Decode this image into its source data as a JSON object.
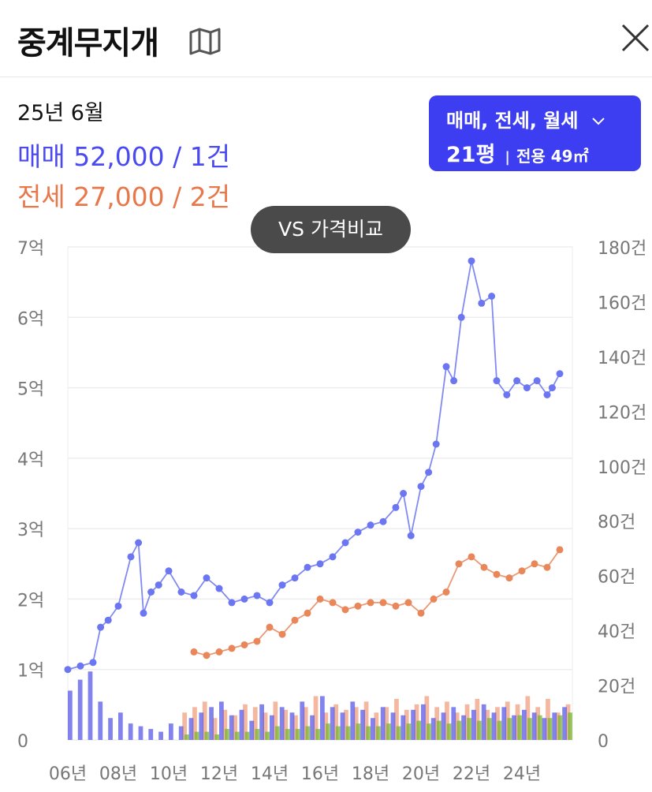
{
  "header": {
    "title": "중계무지개",
    "map_icon": "map-icon",
    "close_icon": "close-icon"
  },
  "summary": {
    "period": "25년 6월",
    "sale": "매매 52,000 / 1건",
    "rent": "전세 27,000 / 2건"
  },
  "filter": {
    "types": "매매, 전세, 월세",
    "size": "21평",
    "area": "전용 49㎡"
  },
  "compare_button": "VS 가격비교",
  "colors": {
    "sale": "#6b76f0",
    "rent": "#e8875a",
    "button": "#3d3df2",
    "vol_sale": "#5a5ae8",
    "vol_rent": "#f0a080",
    "vol_monthly": "#7ab531"
  },
  "chart_data": {
    "type": "line",
    "x_ticks": [
      "06년",
      "08년",
      "10년",
      "12년",
      "14년",
      "16년",
      "18년",
      "20년",
      "22년",
      "24년"
    ],
    "y_left_ticks": [
      "0",
      "1억",
      "2억",
      "3억",
      "4억",
      "5억",
      "6억",
      "7억"
    ],
    "y_right_ticks": [
      "0",
      "20건",
      "40건",
      "60건",
      "80건",
      "100건",
      "120건",
      "140건",
      "160건",
      "180건"
    ],
    "ylim_left": [
      0,
      7
    ],
    "ylim_right": [
      0,
      180
    ],
    "xlim": [
      2006.0,
      2026.0
    ],
    "grid": true,
    "series": [
      {
        "key": "sale",
        "x": [
          2006.0,
          2006.5,
          2007.0,
          2007.3,
          2007.6,
          2008.0,
          2008.5,
          2008.8,
          2009.0,
          2009.3,
          2009.6,
          2010.0,
          2010.5,
          2011.0,
          2011.5,
          2012.0,
          2012.5,
          2013.0,
          2013.5,
          2014.0,
          2014.5,
          2015.0,
          2015.5,
          2016.0,
          2016.5,
          2017.0,
          2017.5,
          2018.0,
          2018.5,
          2019.0,
          2019.3,
          2019.6,
          2020.0,
          2020.3,
          2020.6,
          2021.0,
          2021.3,
          2021.6,
          2022.0,
          2022.4,
          2022.8,
          2023.0,
          2023.4,
          2023.8,
          2024.2,
          2024.6,
          2025.0,
          2025.2,
          2025.5
        ],
        "values": [
          1.0,
          1.05,
          1.1,
          1.6,
          1.7,
          1.9,
          2.6,
          2.8,
          1.8,
          2.1,
          2.2,
          2.4,
          2.1,
          2.05,
          2.3,
          2.15,
          1.95,
          2.0,
          2.05,
          1.95,
          2.2,
          2.3,
          2.45,
          2.5,
          2.6,
          2.8,
          2.95,
          3.05,
          3.1,
          3.3,
          3.5,
          2.9,
          3.6,
          3.8,
          4.2,
          5.3,
          5.1,
          6.0,
          6.8,
          6.2,
          6.3,
          5.1,
          4.9,
          5.1,
          5.0,
          5.1,
          4.9,
          5.0,
          5.2
        ]
      },
      {
        "key": "rent",
        "x": [
          2011.0,
          2011.5,
          2012.0,
          2012.5,
          2013.0,
          2013.5,
          2014.0,
          2014.5,
          2015.0,
          2015.5,
          2016.0,
          2016.5,
          2017.0,
          2017.5,
          2018.0,
          2018.5,
          2019.0,
          2019.5,
          2020.0,
          2020.5,
          2021.0,
          2021.5,
          2022.0,
          2022.5,
          2023.0,
          2023.5,
          2024.0,
          2024.5,
          2025.0,
          2025.5
        ],
        "values": [
          1.25,
          1.2,
          1.25,
          1.3,
          1.35,
          1.4,
          1.6,
          1.5,
          1.7,
          1.8,
          2.0,
          1.95,
          1.85,
          1.9,
          1.95,
          1.95,
          1.9,
          1.95,
          1.8,
          2.0,
          2.1,
          2.5,
          2.6,
          2.45,
          2.35,
          2.3,
          2.4,
          2.5,
          2.45,
          2.7
        ]
      }
    ],
    "volume": {
      "sale": [
        18,
        22,
        25,
        14,
        8,
        10,
        6,
        5,
        4,
        3,
        6,
        5,
        8,
        10,
        12,
        14,
        9,
        11,
        7,
        13,
        9,
        12,
        10,
        14,
        9,
        16,
        12,
        10,
        14,
        11,
        8,
        12,
        10,
        9,
        11,
        13,
        8,
        10,
        12,
        9,
        11,
        13,
        10,
        12,
        9,
        11,
        10,
        8,
        10,
        12
      ],
      "rent": [
        0,
        0,
        0,
        0,
        0,
        0,
        0,
        0,
        0,
        0,
        0,
        10,
        12,
        14,
        8,
        11,
        9,
        13,
        12,
        10,
        14,
        11,
        9,
        12,
        16,
        10,
        13,
        11,
        12,
        14,
        10,
        12,
        15,
        11,
        13,
        16,
        12,
        14,
        10,
        13,
        15,
        11,
        12,
        14,
        13,
        16,
        12,
        15,
        10,
        13
      ],
      "monthly": [
        0,
        0,
        0,
        0,
        0,
        0,
        0,
        0,
        0,
        0,
        0,
        2,
        3,
        3,
        2,
        4,
        3,
        3,
        4,
        3,
        5,
        4,
        4,
        5,
        4,
        6,
        5,
        5,
        6,
        5,
        5,
        6,
        5,
        6,
        7,
        6,
        7,
        6,
        7,
        8,
        7,
        8,
        7,
        8,
        9,
        8,
        9,
        8,
        9,
        10
      ]
    }
  }
}
